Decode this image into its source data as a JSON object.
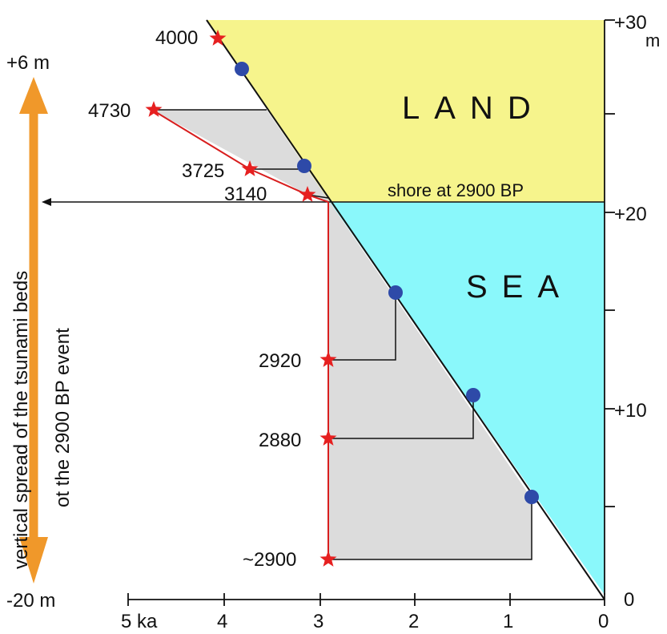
{
  "colors": {
    "land": "#f6f48c",
    "sea": "#8af8fb",
    "gray": "#dcdcdc",
    "red": "#d81e1e",
    "star": "#e62020",
    "dot": "#2e4aa8",
    "arrow": "#f0982a",
    "ink": "#111111"
  },
  "regions": {
    "land_label": "LAND",
    "sea_label": "SEA",
    "shore_label": "shore at 2900 BP"
  },
  "left_scale": {
    "top_label": "+6 m",
    "bottom_label": "-20 m",
    "arrow_caption_line1": "vertical spread of the tsunami beds",
    "arrow_caption_line2": "ot the 2900 BP event"
  },
  "right_axis": {
    "top_label": "+30",
    "top_unit": "m",
    "label_20": "+20",
    "label_10": "+10",
    "label_0": "0"
  },
  "bottom_axis": {
    "tick_labels": [
      "5",
      "4",
      "3",
      "2",
      "1",
      "0"
    ],
    "unit": "ka"
  },
  "samples": [
    {
      "label": "4000"
    },
    {
      "label": "4730"
    },
    {
      "label": "3725"
    },
    {
      "label": "3140"
    },
    {
      "label": "2920"
    },
    {
      "label": "2880"
    },
    {
      "label": "~2900"
    }
  ]
}
